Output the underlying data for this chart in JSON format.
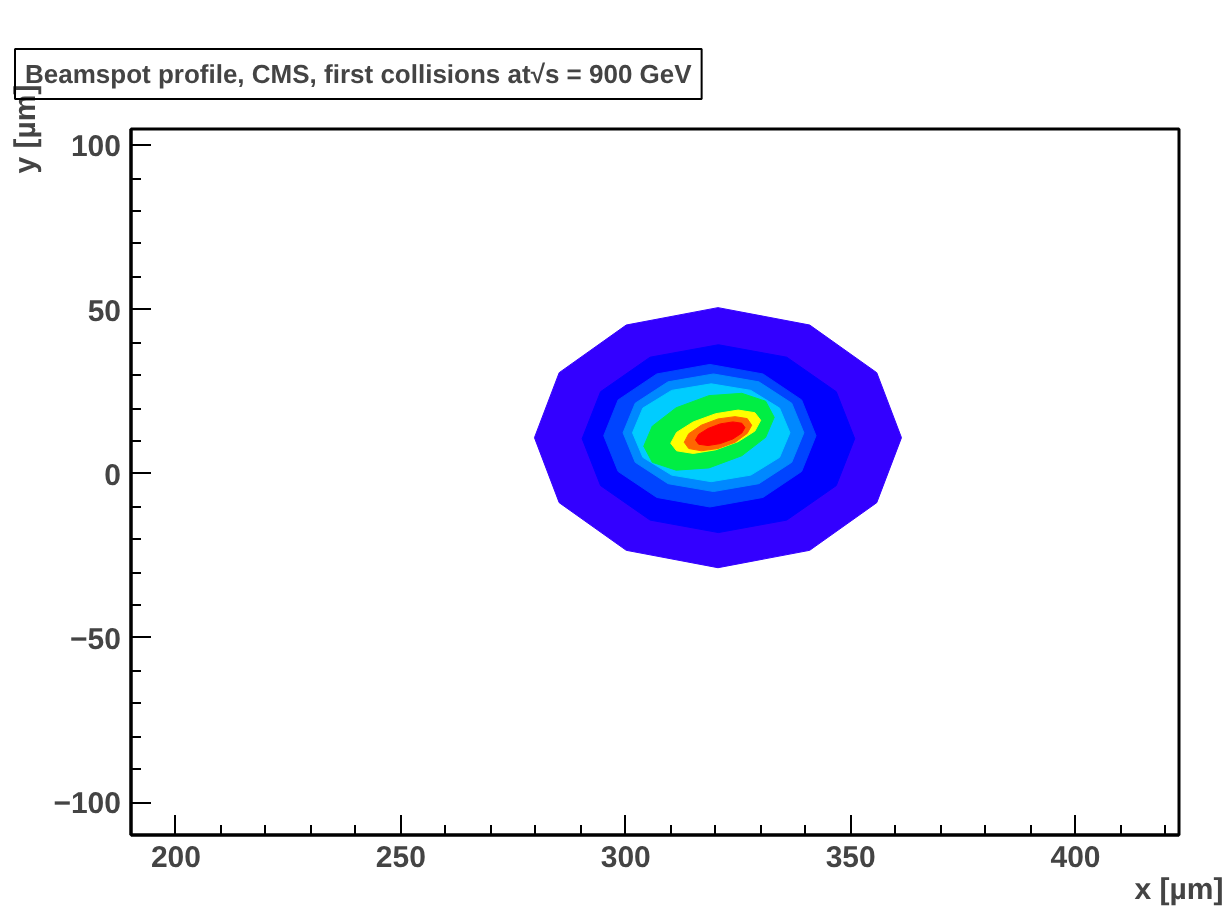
{
  "chart_data": {
    "type": "area",
    "title": "Beamspot profile, CMS, first collisions at√s = 900 GeV",
    "xlabel": "x [µm]",
    "ylabel": "y [µm]",
    "xlim": [
      190,
      423
    ],
    "ylim": [
      -110,
      105
    ],
    "xticks": [
      200,
      250,
      300,
      350,
      400
    ],
    "yticks": [
      -100,
      -50,
      0,
      50,
      100
    ],
    "grid": false,
    "relative": false,
    "series": [
      {
        "color": "#3300ff",
        "x": [
          361.3,
          355.8,
          340.9,
          320.5,
          300.1,
          285.2,
          279.7,
          285.2,
          300.1,
          320.5,
          340.9,
          355.8
        ],
        "values": [
          11,
          30.8,
          45.3,
          50.6,
          45.3,
          30.8,
          11,
          -8.8,
          -23.3,
          -28.6,
          -23.3,
          -8.8
        ]
      },
      {
        "color": "#0000ff",
        "x": [
          350.9,
          346.8,
          335.8,
          320.6,
          305.4,
          294.4,
          290.3,
          294.4,
          305.4,
          320.6,
          335.8,
          346.8
        ],
        "values": [
          10.7,
          25,
          35.5,
          39.3,
          35.5,
          25,
          10.7,
          -3.6,
          -14.1,
          -17.9,
          -14.1,
          -3.6
        ]
      },
      {
        "color": "#0044ff",
        "x": [
          342.3,
          339.1,
          330.5,
          318.7,
          306.9,
          298.3,
          295.1,
          298.3,
          306.9,
          318.7,
          330.5,
          339.1
        ],
        "values": [
          11.6,
          22.5,
          30.4,
          33.3,
          30.4,
          22.5,
          11.6,
          0.7,
          -7.2,
          -10.1,
          -7.2,
          0.7
        ]
      },
      {
        "color": "#0088ff",
        "x": [
          339.6,
          336.9,
          329.6,
          319.5,
          309.4,
          302.1,
          299.4,
          302.1,
          309.4,
          319.5,
          329.6,
          336.9
        ],
        "values": [
          12.5,
          21.5,
          28,
          30.4,
          28,
          21.5,
          12.5,
          3.5,
          -3,
          -5.4,
          -3,
          3.5
        ]
      },
      {
        "color": "#00ccff",
        "x": [
          336.5,
          334.2,
          327.8,
          319,
          310.2,
          303.8,
          301.5,
          303.8,
          310.2,
          319,
          327.8,
          334.2
        ],
        "values": [
          12.5,
          20,
          25.4,
          27.4,
          25.4,
          20,
          12.5,
          5,
          -0.4,
          -2.4,
          -0.4,
          5
        ]
      },
      {
        "color": "#00ee44",
        "x": [
          333,
          331.1,
          325.8,
          318.5,
          311.2,
          305.9,
          304,
          305.9,
          311.2,
          318.5,
          325.8,
          331.1
        ],
        "values": [
          17.2,
          22.1,
          24.5,
          23.8,
          20.1,
          14.5,
          8.4,
          3.5,
          1.1,
          1.8,
          5.5,
          11.1
        ]
      },
      {
        "color": "#ffff00",
        "x": [
          330,
          328.7,
          325,
          320,
          315,
          311.3,
          310,
          311.3,
          315,
          320,
          325,
          328.7
        ],
        "values": [
          16.3,
          18.6,
          19.4,
          18.3,
          15.8,
          12.6,
          9.3,
          7,
          6.2,
          7.3,
          9.8,
          13
        ]
      },
      {
        "color": "#ff6600",
        "x": [
          328,
          327,
          324.3,
          320.5,
          316.8,
          314,
          313,
          314,
          316.8,
          320.5,
          324.3,
          327
        ],
        "values": [
          14.8,
          16.8,
          17.4,
          16.7,
          14.8,
          12.2,
          9.6,
          7.7,
          7,
          7.7,
          9.6,
          12.3
        ]
      },
      {
        "color": "#ff0000",
        "x": [
          326.5,
          325.8,
          323.8,
          321,
          318.3,
          316.2,
          315.5,
          316.2,
          318.3,
          321,
          323.8,
          325.8
        ],
        "values": [
          14.1,
          15.4,
          15.8,
          15.2,
          13.8,
          12,
          10.3,
          9,
          8.6,
          9.2,
          10.6,
          12.4
        ]
      }
    ]
  }
}
